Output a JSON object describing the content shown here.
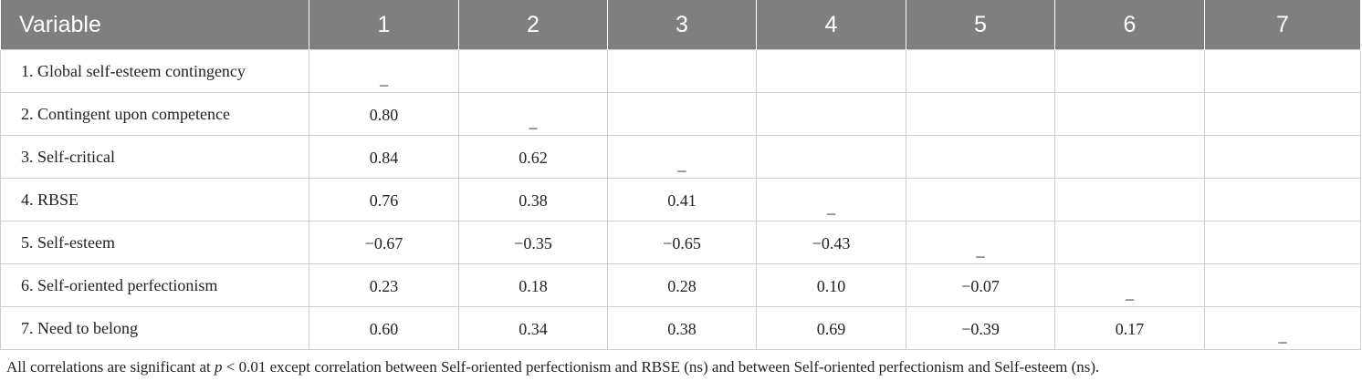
{
  "table": {
    "headers": [
      "Variable",
      "1",
      "2",
      "3",
      "4",
      "5",
      "6",
      "7"
    ],
    "rows": [
      {
        "label": "1. Global self-esteem contingency",
        "cells": [
          "_",
          "",
          "",
          "",
          "",
          "",
          ""
        ]
      },
      {
        "label": "2. Contingent upon competence",
        "cells": [
          "0.80",
          "_",
          "",
          "",
          "",
          "",
          ""
        ]
      },
      {
        "label": "3. Self-critical",
        "cells": [
          "0.84",
          "0.62",
          "_",
          "",
          "",
          "",
          ""
        ]
      },
      {
        "label": "4. RBSE",
        "cells": [
          "0.76",
          "0.38",
          "0.41",
          "_",
          "",
          "",
          ""
        ]
      },
      {
        "label": "5. Self-esteem",
        "cells": [
          "−0.67",
          "−0.35",
          "−0.65",
          "−0.43",
          "_",
          "",
          ""
        ]
      },
      {
        "label": "6. Self-oriented perfectionism",
        "cells": [
          "0.23",
          "0.18",
          "0.28",
          "0.10",
          "−0.07",
          "_",
          ""
        ]
      },
      {
        "label": "7. Need to belong",
        "cells": [
          "0.60",
          "0.34",
          "0.38",
          "0.69",
          "−0.39",
          "0.17",
          "_"
        ]
      }
    ]
  },
  "note": {
    "prefix": "All correlations are significant at ",
    "p_symbol": "p",
    "suffix": " < 0.01 except correlation between Self-oriented perfectionism and RBSE (ns) and between Self-oriented perfectionism and Self-esteem (ns)."
  }
}
